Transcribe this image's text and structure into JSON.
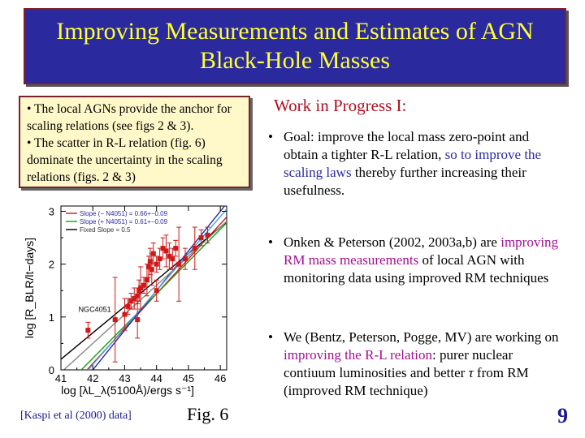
{
  "title": "Improving Measurements and Estimates of AGN Black-Hole Masses",
  "note_box": {
    "line1": "• The local AGNs provide the anchor for scaling relations (see figs 2 & 3).",
    "line2": "• The scatter in R-L relation (fig. 6) dominate the uncertainty in the scaling relations (figs. 2 & 3)"
  },
  "wip_title": "Work in Progress I:",
  "bullets": {
    "goal": {
      "pre": "Goal: improve the local mass zero-point and obtain a tighter R-L relation, ",
      "hl": "so to improve the scaling laws",
      "post": " thereby further increasing their usefulness."
    },
    "onken": {
      "pre": "Onken & Peterson (2002, 2003a,b) are ",
      "hl": "improving RM mass measurements",
      "post": " of local AGN with monitoring data using improved RM techniques"
    },
    "we": {
      "pre": "We (Bentz, Peterson, Pogge, MV) are working on ",
      "hl": "improving the R-L relation",
      "post1": ": purer nuclear contiuum luminosities and better ",
      "tau": "τ",
      "post2": " from RM (improved RM technique)"
    }
  },
  "caption": "[Kaspi et al (2000) data]",
  "fig_label": "Fig. 6",
  "page_number": "9",
  "colors": {
    "title_bg": "#2a2a9e",
    "title_text": "#ffff33",
    "note_bg": "#fff8c8",
    "accent_red": "#b01020",
    "blue_hl": "#2a2aa0",
    "magenta_hl": "#a01090"
  },
  "chart_data": {
    "type": "scatter",
    "xlabel": "log [λL_λ(5100Å)/ergs s⁻¹]",
    "ylabel": "log [R_BLR/lt−days]",
    "xlim": [
      41,
      46.2
    ],
    "ylim": [
      0,
      3.1
    ],
    "xticks": [
      "41",
      "42",
      "43",
      "44",
      "45",
      "46"
    ],
    "yticks": [
      "0",
      "1",
      "2",
      "3"
    ],
    "annotation": "NGC4051",
    "legend": [
      {
        "label": "Slope (− N4051) = 0.66+−0.09",
        "color": "#d01818"
      },
      {
        "label": "Slope (+ N4051) = 0.61+−0.09",
        "color": "#14a014"
      },
      {
        "label": "Fixed Slope = 0.5",
        "color": "#000000"
      }
    ],
    "fits": [
      {
        "name": "Slope (− N4051)",
        "color": "#d01818",
        "slope": 0.66,
        "intercept": -27.6
      },
      {
        "name": "Slope (+ N4051)",
        "color": "#14a014",
        "slope": 0.61,
        "intercept": -25.4
      },
      {
        "name": "Fixed Slope",
        "color": "#000000",
        "slope": 0.5,
        "intercept": -20.3
      },
      {
        "color": "#2a2aa0",
        "slope": 0.75,
        "intercept": -31.5
      },
      {
        "color": "#4aa0e0",
        "slope": 0.7,
        "intercept": -29.3
      },
      {
        "color": "#888888",
        "slope": 0.55,
        "intercept": -22.6
      }
    ],
    "points": [
      {
        "x": 41.85,
        "y": 0.75,
        "yerr": 0.15
      },
      {
        "x": 42.7,
        "y": 0.95,
        "yerr": 0.8
      },
      {
        "x": 43.0,
        "y": 1.05,
        "yerr": 0.3
      },
      {
        "x": 43.1,
        "y": 1.2,
        "yerr": 0.15
      },
      {
        "x": 43.2,
        "y": 1.3,
        "yerr": 0.15
      },
      {
        "x": 43.3,
        "y": 1.35,
        "yerr": 0.2
      },
      {
        "x": 43.4,
        "y": 1.4,
        "yerr": 0.15
      },
      {
        "x": 43.45,
        "y": 1.5,
        "yerr": 0.2
      },
      {
        "x": 43.5,
        "y": 1.55,
        "yerr": 0.4
      },
      {
        "x": 43.6,
        "y": 1.6,
        "yerr": 0.15
      },
      {
        "x": 43.7,
        "y": 1.7,
        "yerr": 0.3
      },
      {
        "x": 43.75,
        "y": 1.95,
        "yerr": 0.2
      },
      {
        "x": 43.8,
        "y": 2.05,
        "yerr": 0.25
      },
      {
        "x": 43.85,
        "y": 1.9,
        "yerr": 0.3
      },
      {
        "x": 43.9,
        "y": 2.2,
        "yerr": 0.2
      },
      {
        "x": 44.0,
        "y": 2.0,
        "yerr": 0.15
      },
      {
        "x": 44.1,
        "y": 2.1,
        "yerr": 0.2
      },
      {
        "x": 44.2,
        "y": 2.3,
        "yerr": 0.2
      },
      {
        "x": 44.3,
        "y": 2.25,
        "yerr": 0.3
      },
      {
        "x": 44.4,
        "y": 2.15,
        "yerr": 0.25
      },
      {
        "x": 44.5,
        "y": 2.1,
        "yerr": 0.2
      },
      {
        "x": 44.6,
        "y": 2.3,
        "yerr": 0.15
      },
      {
        "x": 44.7,
        "y": 2.0,
        "yerr": 0.7
      },
      {
        "x": 44.9,
        "y": 2.1,
        "yerr": 0.2
      },
      {
        "x": 45.2,
        "y": 2.3,
        "yerr": 0.4
      },
      {
        "x": 45.4,
        "y": 2.5,
        "yerr": 0.15
      },
      {
        "x": 45.6,
        "y": 2.55,
        "yerr": 0.15
      },
      {
        "x": 44.0,
        "y": 1.5,
        "yerr": 0.2
      },
      {
        "x": 43.4,
        "y": 0.95,
        "yerr": 0.35
      }
    ]
  }
}
